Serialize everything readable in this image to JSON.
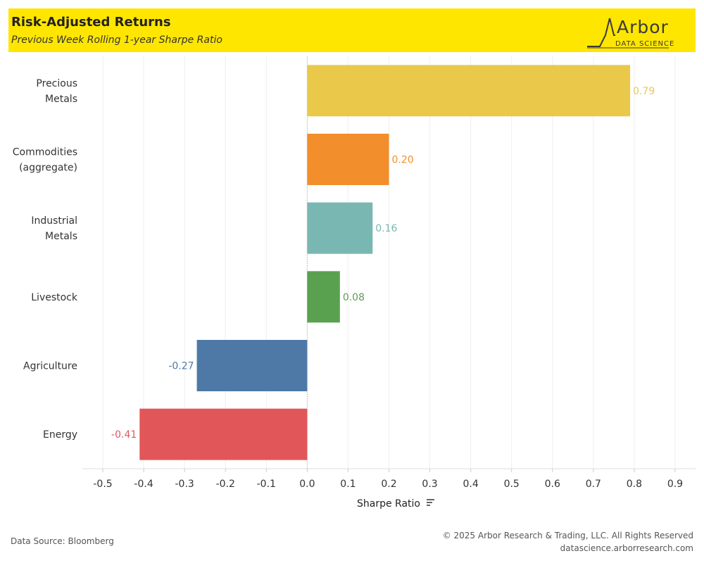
{
  "header": {
    "title": "Risk-Adjusted Returns",
    "subtitle": "Previous Week Rolling 1-year Sharpe Ratio",
    "logo_word": "Arbor",
    "logo_sub": "DATA SCIENCE",
    "background": "#ffe600"
  },
  "footer": {
    "source": "Data Source: Bloomberg",
    "copyright": "© 2025 Arbor Research & Trading, LLC. All Rights Reserved",
    "url": "datascience.arborresearch.com"
  },
  "chart_data": {
    "type": "bar",
    "orientation": "horizontal",
    "categories": [
      [
        "Precious",
        "Metals"
      ],
      [
        "Commodities",
        "(aggregate)"
      ],
      [
        "Industrial",
        "Metals"
      ],
      [
        "Livestock"
      ],
      [
        "Agriculture"
      ],
      [
        "Energy"
      ]
    ],
    "values": [
      0.79,
      0.2,
      0.16,
      0.08,
      -0.27,
      -0.41
    ],
    "value_labels": [
      "0.79",
      "0.20",
      "0.16",
      "0.08",
      "-0.27",
      "-0.41"
    ],
    "colors": [
      "#eac94a",
      "#f28e2b",
      "#79b7b2",
      "#59a14f",
      "#4e79a7",
      "#e15759"
    ],
    "label_colors": [
      "#e8c85a",
      "#f28e2b",
      "#79b7b2",
      "#59a14f",
      "#4e79a7",
      "#e15759"
    ],
    "xlabel": "Sharpe Ratio",
    "ylabel": "",
    "xlim": [
      -0.55,
      0.95
    ],
    "ticks": [
      -0.5,
      -0.4,
      -0.3,
      -0.2,
      -0.1,
      0.0,
      0.1,
      0.2,
      0.3,
      0.4,
      0.5,
      0.6,
      0.7,
      0.8,
      0.9
    ],
    "tick_labels": [
      "-0.5",
      "-0.4",
      "-0.3",
      "-0.2",
      "-0.1",
      "0.0",
      "0.1",
      "0.2",
      "0.3",
      "0.4",
      "0.5",
      "0.6",
      "0.7",
      "0.8",
      "0.9"
    ],
    "grid": true,
    "sort_icon": "sort-descending-icon"
  }
}
